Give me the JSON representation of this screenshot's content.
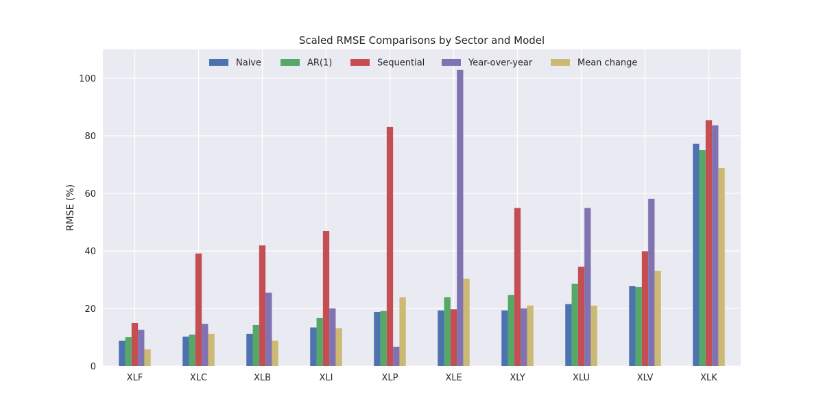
{
  "chart_data": {
    "type": "bar",
    "title": "Scaled RMSE Comparisons by Sector and Model",
    "xlabel": "",
    "ylabel": "RMSE (%)",
    "ylim": [
      0,
      110
    ],
    "yticks": [
      0,
      20,
      40,
      60,
      80,
      100
    ],
    "grid": true,
    "legend_position": "top-center",
    "categories": [
      "XLF",
      "XLC",
      "XLB",
      "XLI",
      "XLP",
      "XLE",
      "XLY",
      "XLU",
      "XLV",
      "XLK"
    ],
    "series": [
      {
        "name": "Naive",
        "color": "#4c72b0",
        "values": [
          8.8,
          10.2,
          11.2,
          13.4,
          18.8,
          19.3,
          19.3,
          21.5,
          27.8,
          77.2
        ]
      },
      {
        "name": "AR(1)",
        "color": "#55a868",
        "values": [
          10.0,
          10.9,
          14.3,
          16.7,
          19.1,
          23.9,
          24.7,
          28.6,
          27.4,
          75.0
        ]
      },
      {
        "name": "Sequential",
        "color": "#c44e52",
        "values": [
          15.0,
          39.1,
          41.9,
          46.9,
          83.1,
          19.7,
          54.9,
          34.5,
          39.9,
          85.4
        ]
      },
      {
        "name": "Year-over-year",
        "color": "#8172b2",
        "values": [
          12.6,
          14.6,
          25.5,
          20.0,
          6.7,
          102.9,
          20.0,
          54.9,
          58.1,
          83.6
        ]
      },
      {
        "name": "Mean change",
        "color": "#ccb974",
        "values": [
          5.8,
          11.2,
          8.8,
          13.1,
          23.9,
          30.3,
          21.0,
          21.0,
          33.1,
          68.8
        ]
      }
    ]
  }
}
